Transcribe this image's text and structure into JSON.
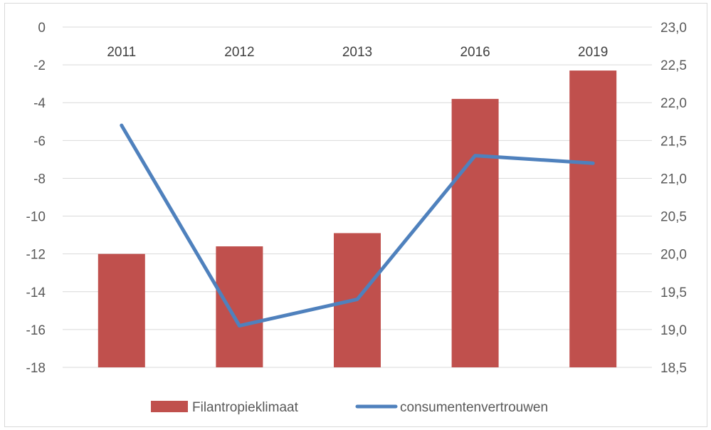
{
  "chart_data": {
    "type": "bar+line",
    "categories": [
      "2011",
      "2012",
      "2013",
      "2016",
      "2019"
    ],
    "series": [
      {
        "name": "Filantropieklimaat",
        "type": "bar",
        "axis": "left",
        "color": "#c0504d",
        "values": [
          -12.0,
          -11.6,
          -10.9,
          -3.8,
          -2.3
        ]
      },
      {
        "name": "consumentenvertrouwen",
        "type": "line",
        "axis": "right",
        "color": "#4f81bd",
        "values": [
          21.7,
          19.05,
          19.4,
          21.3,
          21.2
        ]
      }
    ],
    "left_axis": {
      "min": -18,
      "max": 0,
      "step": 2,
      "tick_labels": [
        "0",
        "-2",
        "-4",
        "-6",
        "-8",
        "-10",
        "-12",
        "-14",
        "-16",
        "-18"
      ]
    },
    "right_axis": {
      "min": 18.5,
      "max": 23.0,
      "step": 0.5,
      "tick_labels": [
        "23,0",
        "22,5",
        "22,0",
        "21,5",
        "21,0",
        "20,5",
        "20,0",
        "19,5",
        "19,0",
        "18,5"
      ]
    },
    "grid": true,
    "legend_position": "bottom",
    "title": "",
    "xlabel": "",
    "ylabel": ""
  }
}
